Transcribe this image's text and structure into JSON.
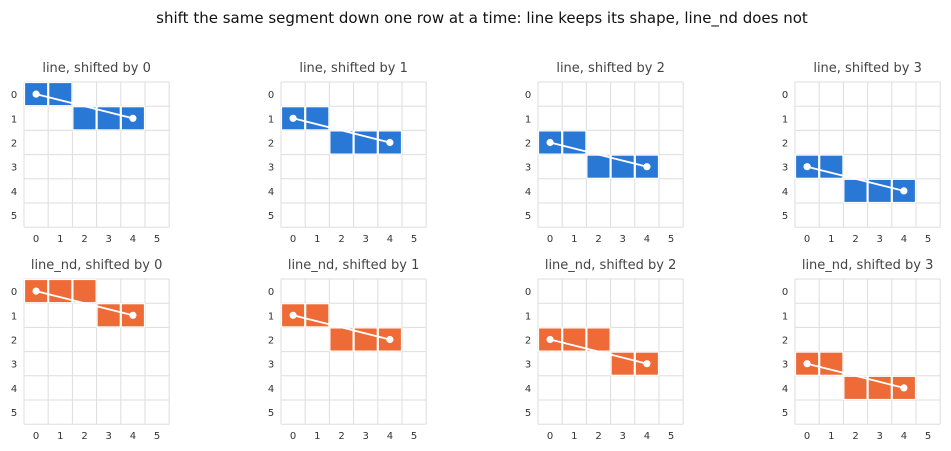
{
  "title": "shift the same segment down one row at a time: line keeps its shape, line_nd does not",
  "colors": {
    "line": "#2a78d6",
    "line_nd": "#ee6a36",
    "segment": "#ffffff",
    "grid": "#dddddd"
  },
  "grid": {
    "rows": 6,
    "cols": 6,
    "tick_labels": [
      "0",
      "1",
      "2",
      "3",
      "4",
      "5"
    ]
  },
  "panels": [
    {
      "title": "line, shifted by 0",
      "algorithm": "line",
      "shift": 0,
      "segment": {
        "from": [
          0,
          0
        ],
        "to": [
          4,
          1
        ]
      },
      "cells": [
        [
          0,
          0
        ],
        [
          1,
          0
        ],
        [
          2,
          1
        ],
        [
          3,
          1
        ],
        [
          4,
          1
        ]
      ]
    },
    {
      "title": "line, shifted by 1",
      "algorithm": "line",
      "shift": 1,
      "segment": {
        "from": [
          0,
          1
        ],
        "to": [
          4,
          2
        ]
      },
      "cells": [
        [
          0,
          1
        ],
        [
          1,
          1
        ],
        [
          2,
          2
        ],
        [
          3,
          2
        ],
        [
          4,
          2
        ]
      ]
    },
    {
      "title": "line, shifted by 2",
      "algorithm": "line",
      "shift": 2,
      "segment": {
        "from": [
          0,
          2
        ],
        "to": [
          4,
          3
        ]
      },
      "cells": [
        [
          0,
          2
        ],
        [
          1,
          2
        ],
        [
          2,
          3
        ],
        [
          3,
          3
        ],
        [
          4,
          3
        ]
      ]
    },
    {
      "title": "line, shifted by 3",
      "algorithm": "line",
      "shift": 3,
      "segment": {
        "from": [
          0,
          3
        ],
        "to": [
          4,
          4
        ]
      },
      "cells": [
        [
          0,
          3
        ],
        [
          1,
          3
        ],
        [
          2,
          4
        ],
        [
          3,
          4
        ],
        [
          4,
          4
        ]
      ]
    },
    {
      "title": "line_nd, shifted by 0",
      "algorithm": "line_nd",
      "shift": 0,
      "segment": {
        "from": [
          0,
          0
        ],
        "to": [
          4,
          1
        ]
      },
      "cells": [
        [
          0,
          0
        ],
        [
          1,
          0
        ],
        [
          2,
          0
        ],
        [
          3,
          1
        ],
        [
          4,
          1
        ]
      ]
    },
    {
      "title": "line_nd, shifted by 1",
      "algorithm": "line_nd",
      "shift": 1,
      "segment": {
        "from": [
          0,
          1
        ],
        "to": [
          4,
          2
        ]
      },
      "cells": [
        [
          0,
          1
        ],
        [
          1,
          1
        ],
        [
          2,
          2
        ],
        [
          3,
          2
        ],
        [
          4,
          2
        ]
      ]
    },
    {
      "title": "line_nd, shifted by 2",
      "algorithm": "line_nd",
      "shift": 2,
      "segment": {
        "from": [
          0,
          2
        ],
        "to": [
          4,
          3
        ]
      },
      "cells": [
        [
          0,
          2
        ],
        [
          1,
          2
        ],
        [
          2,
          2
        ],
        [
          3,
          3
        ],
        [
          4,
          3
        ]
      ]
    },
    {
      "title": "line_nd, shifted by 3",
      "algorithm": "line_nd",
      "shift": 3,
      "segment": {
        "from": [
          0,
          3
        ],
        "to": [
          4,
          4
        ]
      },
      "cells": [
        [
          0,
          3
        ],
        [
          1,
          3
        ],
        [
          2,
          4
        ],
        [
          3,
          4
        ],
        [
          4,
          4
        ]
      ]
    }
  ]
}
